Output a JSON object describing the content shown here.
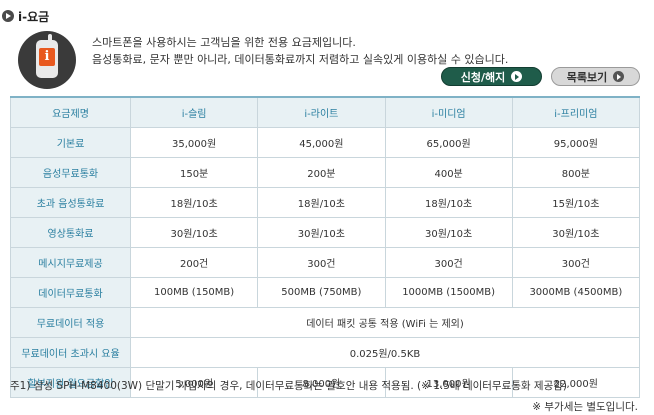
{
  "title": "i-요금",
  "description": [
    "스마트폰을 사용하시는 고객님을 위한 전용 요금제입니다.",
    "음성통화료, 문자 뿐만 아니라, 데이터통화료까지 저렴하고 실속있게 이용하실 수 있습니다."
  ],
  "buttons": {
    "apply": "신청/해지",
    "list": "목록보기"
  },
  "table": {
    "headers": [
      "요금제명",
      "i-슬림",
      "i-라이트",
      "i-미디엄",
      "i-프리미엄"
    ],
    "rows": [
      {
        "label": "기본료",
        "cells": [
          "35,000원",
          "45,000원",
          "65,000원",
          "95,000원"
        ]
      },
      {
        "label": "음성무료통화",
        "cells": [
          "150분",
          "200분",
          "400분",
          "800분"
        ]
      },
      {
        "label": "초과 음성통화료",
        "cells": [
          "18원/10초",
          "18원/10초",
          "18원/10초",
          "15원/10초"
        ]
      },
      {
        "label": "영상통화료",
        "cells": [
          "30원/10초",
          "30원/10초",
          "30원/10초",
          "30원/10초"
        ]
      },
      {
        "label": "메시지무료제공",
        "cells": [
          "200건",
          "300건",
          "300건",
          "300건"
        ]
      },
      {
        "label": "데이터무료통화",
        "cells": [
          "100MB (150MB)",
          "500MB (750MB)",
          "1000MB (1500MB)",
          "3000MB (4500MB)"
        ]
      },
      {
        "label": "무료데이터 적용",
        "merged": "데이터 패킷 공통 적용 (WiFi 는 제외)"
      },
      {
        "label": "무료데이터 초과시 요율",
        "merged": "0.025원/0.5KB"
      },
      {
        "label": "할부지원 월요금할인",
        "cells": [
          "5,000원",
          "8,000원",
          "13,000원",
          "22,000원"
        ]
      }
    ]
  },
  "note": "주1) 삼성 SPH-M8400(3W) 단말기 가입자의 경우, 데이터무료통화는 괄호안 내용 적용됨. (※ 1.5배 데이터무료통화 제공함)",
  "vat_note": "※ 부가세는 별도입니다."
}
